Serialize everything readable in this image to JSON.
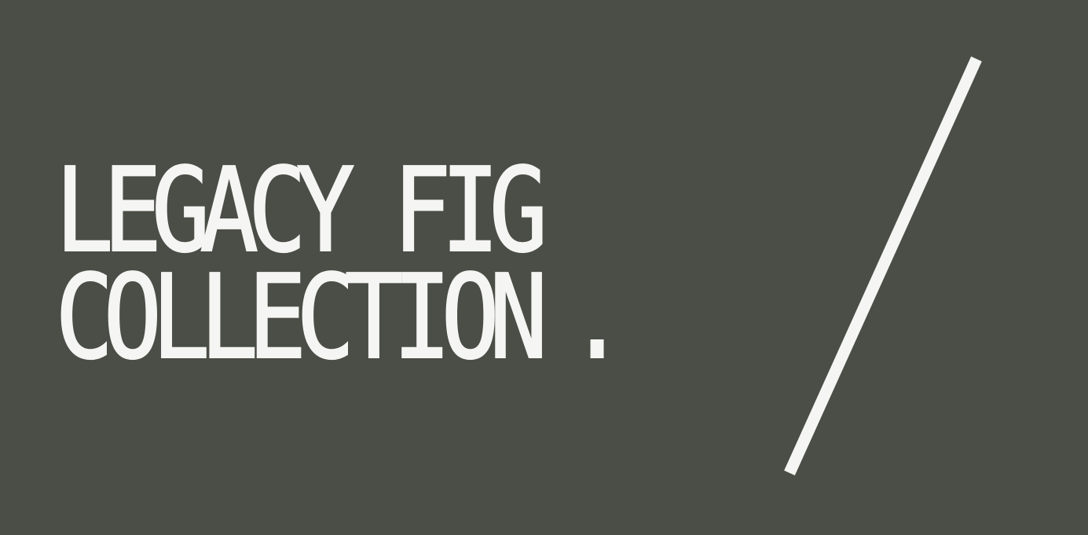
{
  "banner": {
    "line1": "LEGACY FIG",
    "line2": "COLLECTION",
    "period": ".",
    "slash_icon": "diagonal-slash-icon"
  },
  "colors": {
    "background": "#4a4e46",
    "foreground": "#f5f5f3"
  }
}
